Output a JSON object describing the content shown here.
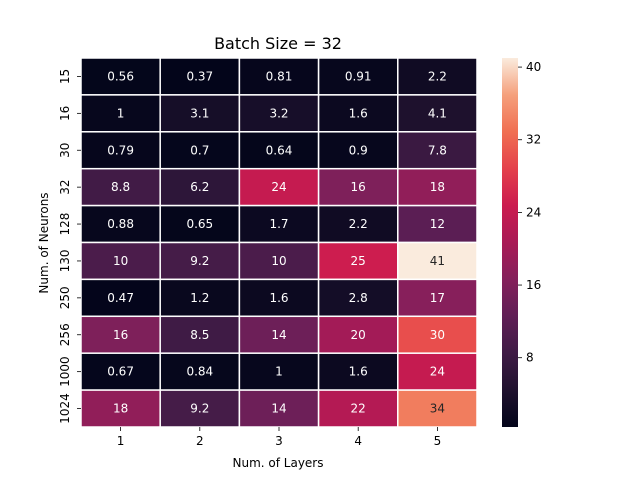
{
  "chart_data": {
    "type": "heatmap",
    "title": "Batch Size = 32",
    "xlabel": "Num. of Layers",
    "ylabel": "Num. of Neurons",
    "x_categories": [
      "1",
      "2",
      "3",
      "4",
      "5"
    ],
    "y_categories": [
      "15",
      "16",
      "30",
      "32",
      "128",
      "130",
      "250",
      "256",
      "1000",
      "1024"
    ],
    "values": [
      [
        0.56,
        0.37,
        0.81,
        0.91,
        2.2
      ],
      [
        1,
        3.1,
        3.2,
        1.6,
        4.1
      ],
      [
        0.79,
        0.7,
        0.64,
        0.9,
        7.8
      ],
      [
        8.8,
        6.2,
        24,
        16,
        18
      ],
      [
        0.88,
        0.65,
        1.7,
        2.2,
        12
      ],
      [
        10,
        9.2,
        10,
        25,
        41
      ],
      [
        0.47,
        1.2,
        1.6,
        2.8,
        17
      ],
      [
        16,
        8.5,
        14,
        20,
        30
      ],
      [
        0.67,
        0.84,
        1,
        1.6,
        24
      ],
      [
        18,
        9.2,
        14,
        22,
        34
      ]
    ],
    "value_labels": [
      [
        "0.56",
        "0.37",
        "0.81",
        "0.91",
        "2.2"
      ],
      [
        "1",
        "3.1",
        "3.2",
        "1.6",
        "4.1"
      ],
      [
        "0.79",
        "0.7",
        "0.64",
        "0.9",
        "7.8"
      ],
      [
        "8.8",
        "6.2",
        "24",
        "16",
        "18"
      ],
      [
        "0.88",
        "0.65",
        "1.7",
        "2.2",
        "12"
      ],
      [
        "10",
        "9.2",
        "10",
        "25",
        "41"
      ],
      [
        "0.47",
        "1.2",
        "1.6",
        "2.8",
        "17"
      ],
      [
        "16",
        "8.5",
        "14",
        "20",
        "30"
      ],
      [
        "0.67",
        "0.84",
        "1",
        "1.6",
        "24"
      ],
      [
        "18",
        "9.2",
        "14",
        "22",
        "34"
      ]
    ],
    "colorscale": "rocket",
    "colorbar": {
      "range": [
        0.37,
        41
      ],
      "ticks": [
        8,
        16,
        24,
        32,
        40
      ],
      "tick_labels": [
        "8",
        "16",
        "24",
        "32",
        "40"
      ]
    }
  }
}
